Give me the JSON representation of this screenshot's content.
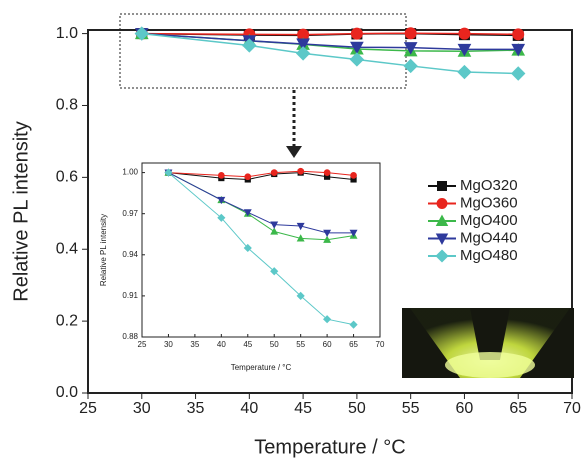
{
  "chart_data": [
    {
      "type": "line",
      "x_label": "Temperature / °C",
      "y_label": "Relative PL intensity",
      "x": [
        30,
        40,
        45,
        50,
        55,
        60,
        65
      ],
      "xlim": [
        25,
        70
      ],
      "xticks": [
        25,
        30,
        35,
        40,
        45,
        50,
        55,
        60,
        65,
        70
      ],
      "ylim": [
        0,
        1.01
      ],
      "yticks": [
        {
          "value": 0,
          "label": "0.0"
        },
        0.2,
        0.4,
        0.6,
        0.8,
        {
          "value": 1,
          "label": "1.0"
        }
      ],
      "legend": "right",
      "series": [
        {
          "name": "MgO320",
          "color": "#111111",
          "marker": "square",
          "values": [
            1.0,
            0.996,
            0.995,
            0.999,
            1.0,
            0.997,
            0.995
          ]
        },
        {
          "name": "MgO360",
          "color": "#e8251e",
          "marker": "circle",
          "values": [
            1.0,
            0.998,
            0.997,
            1.0,
            1.001,
            1.0,
            0.998
          ]
        },
        {
          "name": "MgO400",
          "color": "#3cb84a",
          "marker": "triangle-up",
          "values": [
            1.0,
            0.98,
            0.97,
            0.957,
            0.952,
            0.951,
            0.954
          ]
        },
        {
          "name": "MgO440",
          "color": "#2e3a9c",
          "marker": "triangle-down",
          "values": [
            1.0,
            0.98,
            0.971,
            0.962,
            0.961,
            0.956,
            0.956
          ]
        },
        {
          "name": "MgO480",
          "color": "#5cc8c8",
          "marker": "diamond",
          "values": [
            1.0,
            0.967,
            0.945,
            0.928,
            0.91,
            0.893,
            0.889
          ]
        }
      ]
    },
    {
      "type": "line",
      "x_label": "Temperature / °C",
      "y_label": "Relative PL intensity",
      "x": [
        30,
        40,
        45,
        50,
        55,
        60,
        65
      ],
      "xlim": [
        25,
        70
      ],
      "xticks": [
        25,
        30,
        35,
        40,
        45,
        50,
        55,
        60,
        65,
        70
      ],
      "ylim": [
        0.88,
        1.007
      ],
      "yticks": [
        0.88,
        0.91,
        0.94,
        0.97,
        {
          "value": 1,
          "label": "1.00"
        }
      ],
      "series": [
        {
          "color": "#111111",
          "marker": "square",
          "values": [
            1.0,
            0.996,
            0.995,
            0.999,
            1.0,
            0.997,
            0.995
          ]
        },
        {
          "color": "#e8251e",
          "marker": "circle",
          "values": [
            1.0,
            0.998,
            0.997,
            1.0,
            1.001,
            1.0,
            0.998
          ]
        },
        {
          "color": "#3cb84a",
          "marker": "triangle-up",
          "values": [
            1.0,
            0.98,
            0.97,
            0.957,
            0.952,
            0.951,
            0.954
          ]
        },
        {
          "color": "#2e3a9c",
          "marker": "triangle-down",
          "values": [
            1.0,
            0.98,
            0.971,
            0.962,
            0.961,
            0.956,
            0.956
          ]
        },
        {
          "color": "#5cc8c8",
          "marker": "diamond",
          "values": [
            1.0,
            0.967,
            0.945,
            0.928,
            0.91,
            0.893,
            0.889
          ]
        }
      ]
    }
  ]
}
